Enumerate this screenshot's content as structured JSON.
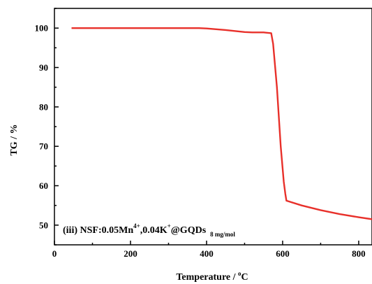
{
  "chart_data": {
    "type": "line",
    "xlabel_main": "Temperature / ",
    "xlabel_sup": "o",
    "xlabel_unit": "C",
    "ylabel": "TG / %",
    "xlim": [
      0,
      835
    ],
    "ylim": [
      45,
      105
    ],
    "xticks": [
      0,
      200,
      400,
      600,
      800
    ],
    "yticks": [
      50,
      60,
      70,
      80,
      90,
      100
    ],
    "grid": false,
    "line_color": "#e8302a",
    "annotation": {
      "prefix": "(iii) NSF:0.05Mn",
      "sup1": "4+",
      "mid": ",0.04K",
      "sup2": "+",
      "suffix": "@GQDs",
      "sub": "8 mg/mol"
    },
    "series": [
      {
        "x": [
          45,
          100,
          200,
          300,
          380,
          400,
          450,
          500,
          520,
          550,
          570,
          575,
          585,
          595,
          603,
          607,
          610,
          650,
          700,
          750,
          800,
          835
        ],
        "y": [
          100,
          100,
          100,
          100,
          100,
          99.9,
          99.5,
          99.0,
          98.9,
          98.9,
          98.7,
          96,
          85,
          70,
          61,
          58,
          56.2,
          55.0,
          53.8,
          52.8,
          52.0,
          51.5
        ]
      }
    ]
  }
}
